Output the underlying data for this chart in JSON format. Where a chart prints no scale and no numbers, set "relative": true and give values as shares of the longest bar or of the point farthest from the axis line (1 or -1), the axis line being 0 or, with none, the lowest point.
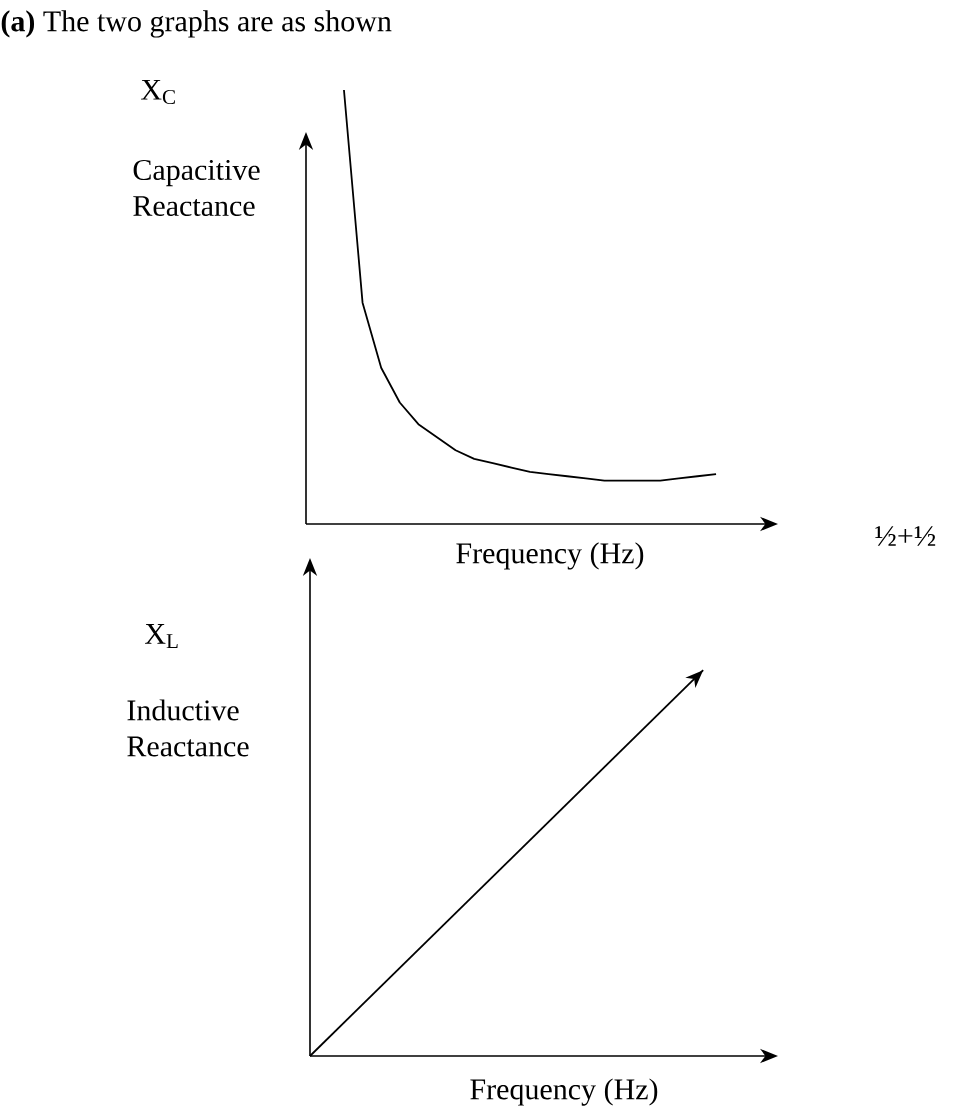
{
  "chart_data": [
    {
      "type": "line",
      "relative": true,
      "title": "**(a)** The two graphs are as shown",
      "ylabel": "Capacitive Reactance",
      "xlabel": "Frequency (Hz)",
      "annotations": [
        "X$_{C}$",
        "½+½"
      ],
      "categories": [
        null,
        null,
        null,
        null,
        null,
        null,
        null,
        null,
        null,
        null,
        null,
        null,
        null,
        null,
        null,
        null,
        null,
        null,
        null,
        null,
        null
      ],
      "values": [
        1,
        0.51,
        0.36,
        0.28,
        0.23,
        0.2,
        0.17,
        0.15,
        0.14,
        0.13,
        0.12,
        0.115,
        0.11,
        0.105,
        0.1,
        0.1,
        0.1,
        0.1,
        0.105,
        0.11,
        0.115
      ],
      "color": "#000000"
    },
    {
      "type": "line",
      "relative": true,
      "ylabel": "Inductive Reactance",
      "xlabel": "Frequency (Hz)",
      "annotations": [
        "X$_{L}$"
      ],
      "categories": [
        null,
        null
      ],
      "values": [
        0,
        1
      ],
      "color": "#000000"
    }
  ]
}
